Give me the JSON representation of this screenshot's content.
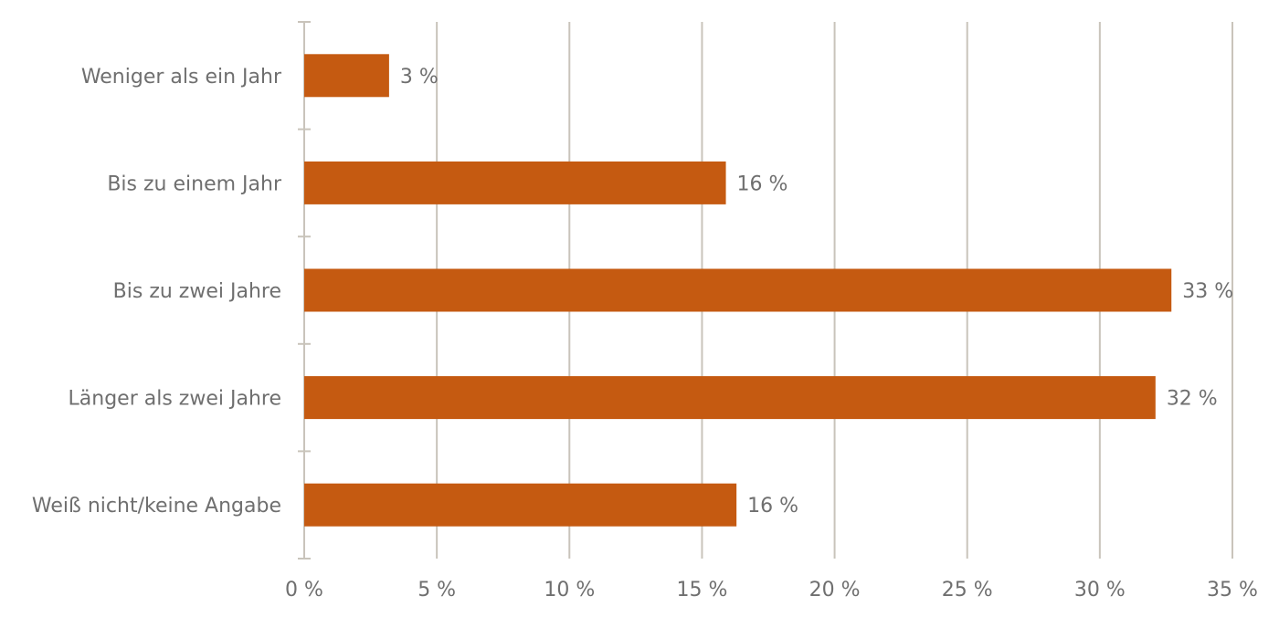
{
  "chart_data": {
    "type": "bar",
    "orientation": "horizontal",
    "categories": [
      "Weniger als ein Jahr",
      "Bis zu einem Jahr",
      "Bis zu zwei Jahre",
      "Länger als zwei Jahre",
      "Weiß nicht/keine Angabe"
    ],
    "values": [
      3.2,
      15.9,
      32.7,
      32.1,
      16.3
    ],
    "value_labels": [
      "3 %",
      "16 %",
      "33 %",
      "32 %",
      "16 %"
    ],
    "xlim": [
      0,
      35
    ],
    "xticks": [
      0,
      5,
      10,
      15,
      20,
      25,
      30,
      35
    ],
    "xtick_labels": [
      "0 %",
      "5 %",
      "10 %",
      "15 %",
      "20 %",
      "25 %",
      "30 %",
      "35 %"
    ],
    "grid": true,
    "bar_color": "#c55a11",
    "title": "",
    "xlabel": "",
    "ylabel": ""
  }
}
